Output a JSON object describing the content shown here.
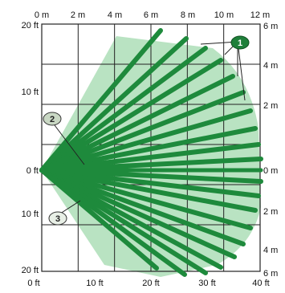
{
  "diagram": {
    "top_axis_ticks": [
      "0 m",
      "2 m",
      "4 m",
      "6 m",
      "8 m",
      "10 m",
      "12 m"
    ],
    "bottom_axis_ticks": [
      "0 ft",
      "10 ft",
      "20 ft",
      "30 ft",
      "40 ft"
    ],
    "left_axis_ticks": [
      "20 ft",
      "10 ft",
      "0 ft",
      "10 ft",
      "20 ft"
    ],
    "right_axis_ticks": [
      "6 m",
      "4 m",
      "2 m",
      "0 m",
      "2 m",
      "4 m",
      "6 m"
    ],
    "callouts": [
      {
        "number": "1",
        "fill": "#1f7f3a",
        "text_color": "#ffffff"
      },
      {
        "number": "2",
        "fill": "#c9d8c4",
        "text_color": "#222222"
      },
      {
        "number": "3",
        "fill": "#e8efe6",
        "text_color": "#222222"
      }
    ],
    "colors": {
      "coverage_fill": "#b9e3c2",
      "zone_line": "#1e8a3c",
      "grid_line": "#222222"
    }
  }
}
